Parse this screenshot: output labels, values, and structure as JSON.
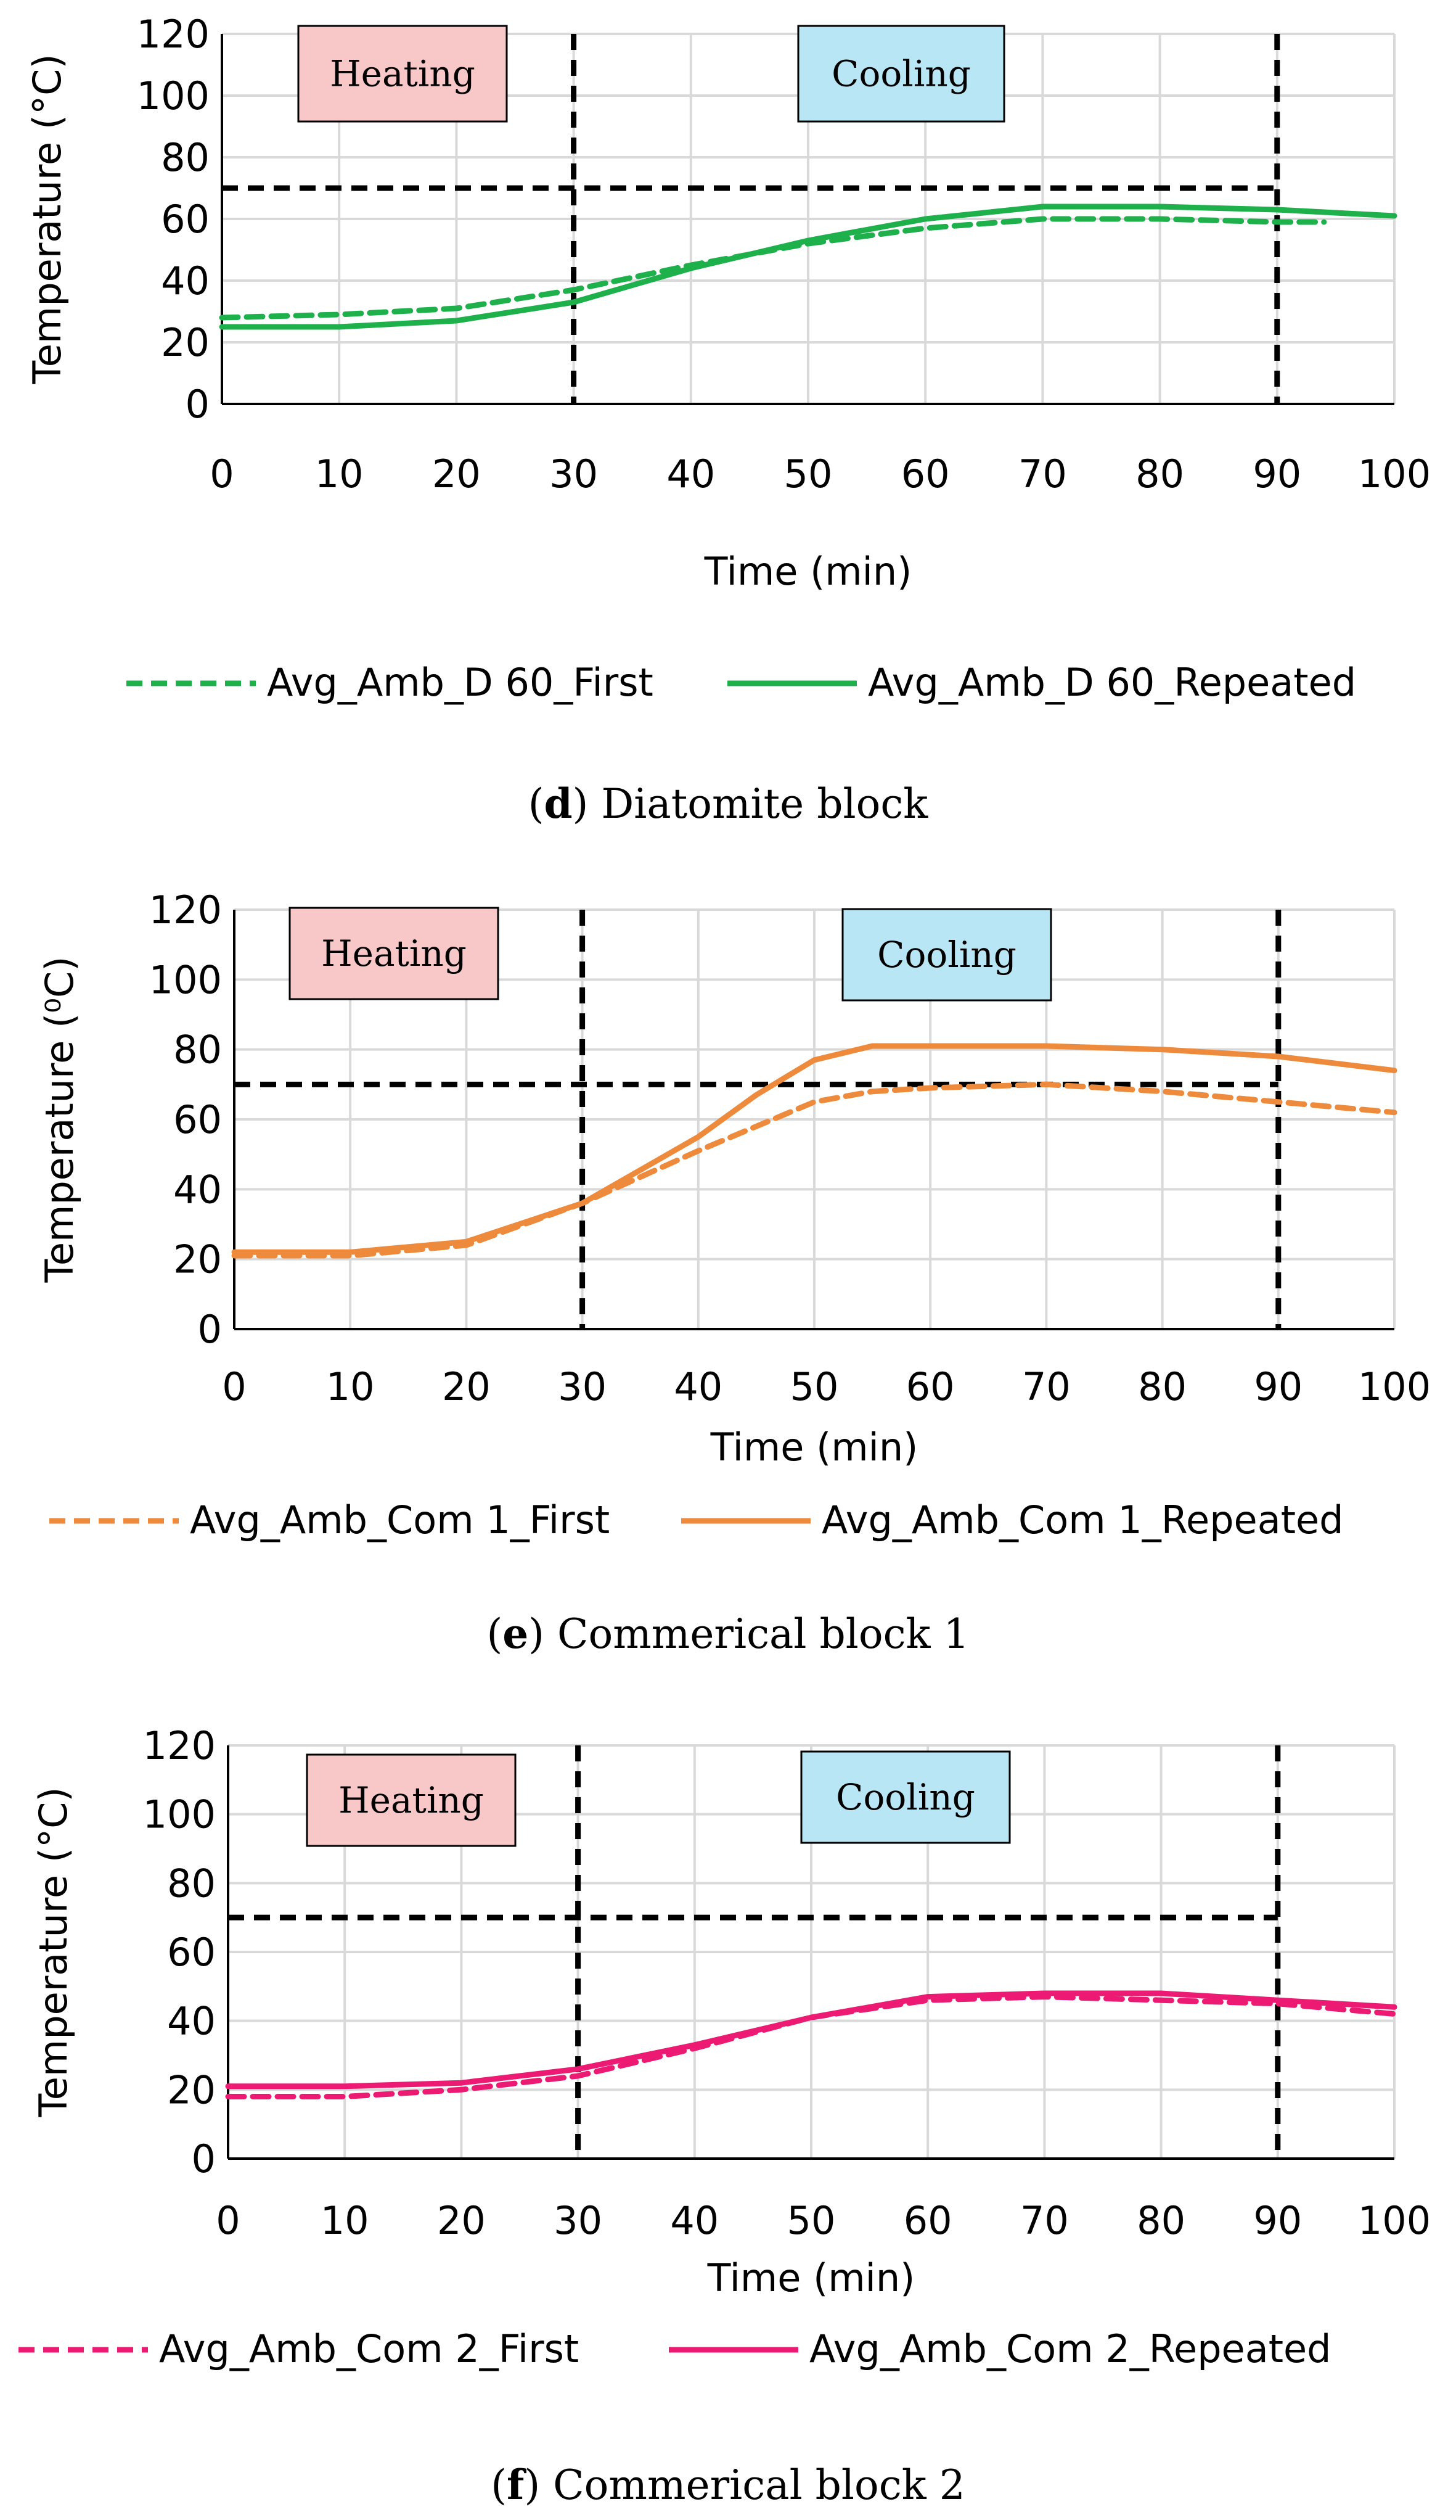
{
  "chart_data": [
    {
      "type": "line",
      "panel": "d",
      "caption_letter": "d",
      "caption_text": "Diatomite block",
      "xlabel": "Time (min)",
      "ylabel": "Temperature (°C)",
      "xlim": [
        0,
        100
      ],
      "ylim": [
        0,
        120
      ],
      "xticks": [
        "0",
        "10",
        "20",
        "30",
        "40",
        "50",
        "60",
        "70",
        "80",
        "90",
        "100"
      ],
      "yticks": [
        "0",
        "20",
        "40",
        "60",
        "80",
        "100",
        "120"
      ],
      "grid": true,
      "legend_position": "bottom",
      "phase_labels": [
        "Heating",
        "Cooling"
      ],
      "reference_lines": {
        "threshold": 70,
        "vertical": [
          30,
          90
        ]
      },
      "series": [
        {
          "name": "Avg_Amb_D 60_First",
          "style": "dashed",
          "color": "#1db04b",
          "x": [
            0,
            10,
            20,
            30,
            40,
            50,
            60,
            70,
            80,
            90,
            94
          ],
          "y": [
            28,
            29,
            31,
            37,
            45,
            52,
            57,
            60,
            60,
            59,
            59
          ]
        },
        {
          "name": "Avg_Amb_D 60_Repeated",
          "style": "solid",
          "color": "#1db04b",
          "x": [
            0,
            10,
            20,
            30,
            40,
            50,
            60,
            70,
            80,
            90,
            100
          ],
          "y": [
            25,
            25,
            27,
            33,
            44,
            53,
            60,
            64,
            64,
            63,
            61
          ]
        }
      ]
    },
    {
      "type": "line",
      "panel": "e",
      "caption_letter": "e",
      "caption_text": "Commerical block 1",
      "xlabel": "Time (min)",
      "ylabel": "Temperature (⁰C)",
      "xlim": [
        0,
        100
      ],
      "ylim": [
        0,
        120
      ],
      "xticks": [
        "0",
        "10",
        "20",
        "30",
        "40",
        "50",
        "60",
        "70",
        "80",
        "90",
        "100"
      ],
      "yticks": [
        "0",
        "20",
        "40",
        "60",
        "80",
        "100",
        "120"
      ],
      "grid": true,
      "legend_position": "bottom",
      "phase_labels": [
        "Heating",
        "Cooling"
      ],
      "reference_lines": {
        "threshold": 70,
        "vertical": [
          30,
          90
        ]
      },
      "series": [
        {
          "name": "Avg_Amb_Com 1_First",
          "style": "dashed",
          "color": "#ee8a3c",
          "x": [
            0,
            10,
            20,
            30,
            40,
            50,
            55,
            60,
            70,
            80,
            90,
            100
          ],
          "y": [
            21,
            21,
            24,
            36,
            51,
            65,
            68,
            69,
            70,
            68,
            65,
            62
          ]
        },
        {
          "name": "Avg_Amb_Com 1_Repeated",
          "style": "solid",
          "color": "#ee8a3c",
          "x": [
            0,
            10,
            20,
            30,
            40,
            45,
            50,
            55,
            60,
            70,
            80,
            90,
            100
          ],
          "y": [
            22,
            22,
            25,
            36,
            55,
            67,
            77,
            81,
            81,
            81,
            80,
            78,
            74
          ]
        }
      ]
    },
    {
      "type": "line",
      "panel": "f",
      "caption_letter": "f",
      "caption_text": "Commerical block 2",
      "xlabel": "Time (min)",
      "ylabel": "Temperature (°C)",
      "xlim": [
        0,
        100
      ],
      "ylim": [
        0,
        120
      ],
      "xticks": [
        "0",
        "10",
        "20",
        "30",
        "40",
        "50",
        "60",
        "70",
        "80",
        "90",
        "100"
      ],
      "yticks": [
        "0",
        "20",
        "40",
        "60",
        "80",
        "100",
        "120"
      ],
      "grid": true,
      "legend_position": "bottom",
      "phase_labels": [
        "Heating",
        "Cooling"
      ],
      "reference_lines": {
        "threshold": 70,
        "vertical": [
          30,
          90
        ]
      },
      "series": [
        {
          "name": "Avg_Amb_Com 2_First",
          "style": "dashed",
          "color": "#ec1a72",
          "x": [
            0,
            10,
            20,
            30,
            40,
            50,
            60,
            70,
            80,
            90,
            100
          ],
          "y": [
            18,
            18,
            20,
            24,
            32,
            41,
            46,
            47,
            46,
            45,
            42
          ]
        },
        {
          "name": "Avg_Amb_Com 2_Repeated",
          "style": "solid",
          "color": "#ec1a72",
          "x": [
            0,
            10,
            20,
            30,
            40,
            50,
            60,
            70,
            80,
            90,
            100
          ],
          "y": [
            21,
            21,
            22,
            26,
            33,
            41,
            47,
            48,
            48,
            46,
            44
          ]
        }
      ]
    }
  ]
}
